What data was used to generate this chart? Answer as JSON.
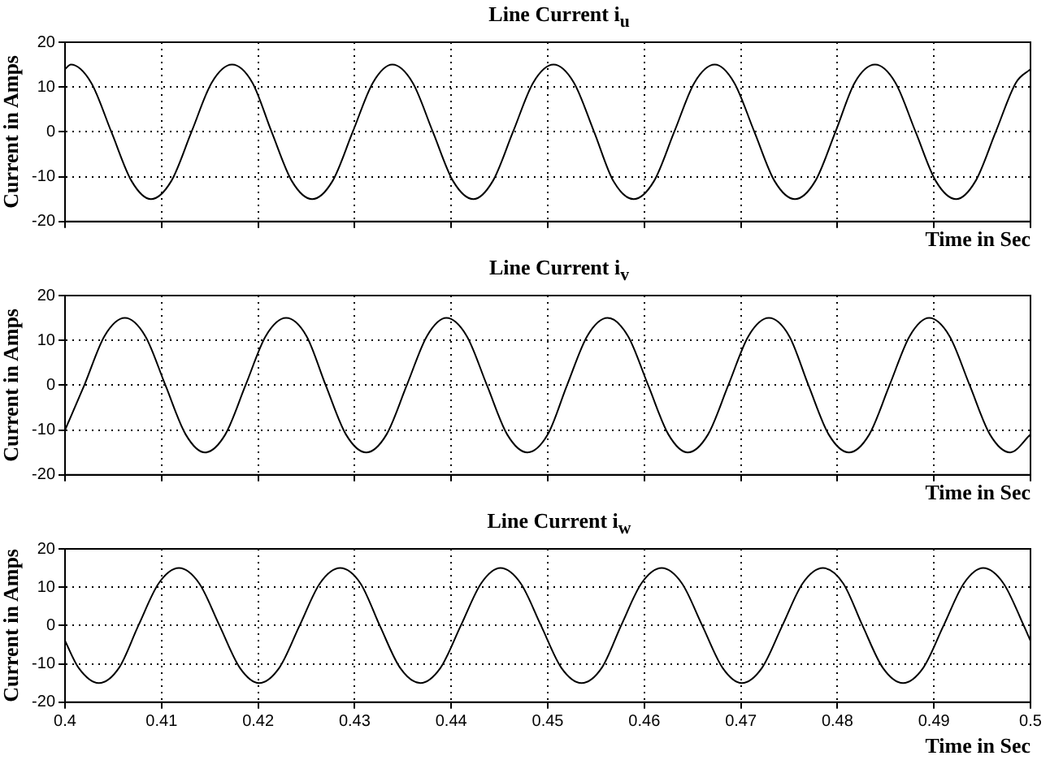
{
  "chart_data": [
    {
      "type": "line",
      "title": "Line Current i$_{u}$",
      "xlabel": "Time in Sec",
      "ylabel": "Current in Amps",
      "xlim": [
        0.4,
        0.5
      ],
      "xticks": [
        0.4,
        0.41,
        0.42,
        0.43,
        0.44,
        0.45,
        0.46,
        0.47,
        0.48,
        0.49,
        0.5
      ],
      "ylim": [
        -20,
        20
      ],
      "yticks": [
        -20,
        -10,
        0,
        10,
        20
      ],
      "grid": true,
      "tick_labels": "y",
      "series": [
        {
          "color": "#000000",
          "x": [
            0.4,
            0.4006,
            0.4027,
            0.4048,
            0.4069,
            0.4089,
            0.411,
            0.4131,
            0.4152,
            0.4173,
            0.4194,
            0.4214,
            0.4235,
            0.4256,
            0.4277,
            0.4298,
            0.4319,
            0.4339,
            0.436,
            0.4381,
            0.4402,
            0.4423,
            0.4443,
            0.4464,
            0.4485,
            0.4506,
            0.4527,
            0.4548,
            0.4568,
            0.4589,
            0.461,
            0.4631,
            0.4652,
            0.4673,
            0.4693,
            0.4714,
            0.4735,
            0.4756,
            0.4777,
            0.4798,
            0.4818,
            0.4839,
            0.486,
            0.4881,
            0.4902,
            0.4923,
            0.4943,
            0.4964,
            0.4985,
            0.5
          ],
          "values": [
            14,
            15,
            11,
            0,
            -11,
            -15,
            -11,
            0,
            11,
            15,
            11,
            0,
            -11,
            -15,
            -11,
            0,
            11,
            15,
            11,
            0,
            -11,
            -15,
            -11,
            0,
            11,
            15,
            11,
            0,
            -11,
            -15,
            -11,
            0,
            11,
            15,
            11,
            0,
            -11,
            -15,
            -11,
            0,
            11,
            15,
            11,
            0,
            -11,
            -15,
            -11,
            0,
            11,
            14
          ]
        }
      ]
    },
    {
      "type": "line",
      "title": "Line Current i$_{v}$",
      "xlabel": "Time in Sec",
      "ylabel": "Current in Amps",
      "xlim": [
        0.4,
        0.5
      ],
      "xticks": [
        0.4,
        0.41,
        0.42,
        0.43,
        0.44,
        0.45,
        0.46,
        0.47,
        0.48,
        0.49,
        0.5
      ],
      "ylim": [
        -20,
        20
      ],
      "yticks": [
        -20,
        -10,
        0,
        10,
        20
      ],
      "grid": true,
      "tick_labels": "y",
      "series": [
        {
          "color": "#000000",
          "x": [
            0.4,
            0.402,
            0.4041,
            0.4062,
            0.4083,
            0.4104,
            0.4125,
            0.4145,
            0.4166,
            0.4187,
            0.4208,
            0.4229,
            0.425,
            0.427,
            0.4291,
            0.4312,
            0.4333,
            0.4354,
            0.4375,
            0.4395,
            0.4416,
            0.4437,
            0.4458,
            0.4479,
            0.45,
            0.452,
            0.4541,
            0.4562,
            0.4583,
            0.4604,
            0.4625,
            0.4645,
            0.4666,
            0.4687,
            0.4708,
            0.4729,
            0.475,
            0.477,
            0.4791,
            0.4812,
            0.4833,
            0.4854,
            0.4875,
            0.4895,
            0.4916,
            0.4937,
            0.4958,
            0.4979,
            0.5
          ],
          "values": [
            -10,
            0,
            11,
            15,
            11,
            0,
            -11,
            -15,
            -11,
            0,
            11,
            15,
            11,
            0,
            -11,
            -15,
            -11,
            0,
            11,
            15,
            11,
            0,
            -11,
            -15,
            -11,
            0,
            11,
            15,
            11,
            0,
            -11,
            -15,
            -11,
            0,
            11,
            15,
            11,
            0,
            -11,
            -15,
            -11,
            0,
            11,
            15,
            11,
            0,
            -11,
            -15,
            -11
          ]
        }
      ]
    },
    {
      "type": "line",
      "title": "Line Current i$_{w}$",
      "xlabel": "Time in Sec",
      "ylabel": "Current in Amps",
      "xlim": [
        0.4,
        0.5
      ],
      "xticks": [
        0.4,
        0.41,
        0.42,
        0.43,
        0.44,
        0.45,
        0.46,
        0.47,
        0.48,
        0.49,
        0.5
      ],
      "ylim": [
        -20,
        20
      ],
      "yticks": [
        -20,
        -10,
        0,
        10,
        20
      ],
      "grid": true,
      "series": [
        {
          "color": "#000000",
          "x": [
            0.4,
            0.4014,
            0.4035,
            0.4056,
            0.4076,
            0.4097,
            0.4118,
            0.4139,
            0.416,
            0.4181,
            0.4201,
            0.4222,
            0.4243,
            0.4264,
            0.4285,
            0.4306,
            0.4326,
            0.4347,
            0.4368,
            0.4389,
            0.441,
            0.4431,
            0.4451,
            0.4472,
            0.4493,
            0.4514,
            0.4535,
            0.4556,
            0.4576,
            0.4597,
            0.4618,
            0.4639,
            0.466,
            0.4681,
            0.4701,
            0.4722,
            0.4743,
            0.4764,
            0.4785,
            0.4806,
            0.4826,
            0.4847,
            0.4868,
            0.4889,
            0.491,
            0.4931,
            0.4951,
            0.4972,
            0.4993,
            0.5
          ],
          "values": [
            -4,
            -11,
            -15,
            -11,
            0,
            11,
            15,
            11,
            0,
            -11,
            -15,
            -11,
            0,
            11,
            15,
            11,
            0,
            -11,
            -15,
            -11,
            0,
            11,
            15,
            11,
            0,
            -11,
            -15,
            -11,
            0,
            11,
            15,
            11,
            0,
            -11,
            -15,
            -11,
            0,
            11,
            15,
            11,
            0,
            -11,
            -15,
            -11,
            0,
            11,
            15,
            11,
            0,
            -4
          ]
        }
      ]
    }
  ]
}
